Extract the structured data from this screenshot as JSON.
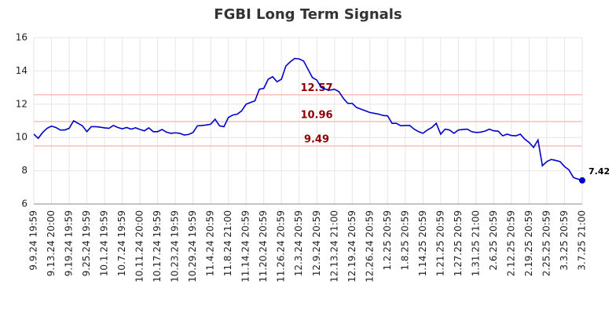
{
  "chart_data": {
    "type": "line",
    "title": "FGBI Long Term Signals",
    "categories": [
      "9.9.24 19:59",
      null,
      null,
      null,
      "9.13.24 20:00",
      null,
      null,
      null,
      "9.19.24 19:59",
      null,
      null,
      null,
      "9.25.24 19:59",
      null,
      null,
      null,
      "10.1.24 19:59",
      null,
      null,
      null,
      "10.7.24 19:59",
      null,
      null,
      null,
      "10.11.24 20:00",
      null,
      null,
      null,
      "10.17.24 19:59",
      null,
      null,
      null,
      "10.23.24 19:59",
      null,
      null,
      null,
      "10.29.24 19:59",
      null,
      null,
      null,
      "11.4.24 20:59",
      null,
      null,
      null,
      "11.8.24 21:00",
      null,
      null,
      null,
      "11.14.24 20:59",
      null,
      null,
      null,
      "11.20.24 20:59",
      null,
      null,
      null,
      "11.26.24 20:59",
      null,
      null,
      null,
      "12.3.24 20:59",
      null,
      null,
      null,
      "12.9.24 20:59",
      null,
      null,
      null,
      "12.13.24 21:00",
      null,
      null,
      null,
      "12.19.24 20:59",
      null,
      null,
      null,
      "12.26.24 20:59",
      null,
      null,
      null,
      "1.2.25 20:59",
      null,
      null,
      null,
      "1.8.25 20:59",
      null,
      null,
      null,
      "1.14.25 20:59",
      null,
      null,
      null,
      "1.21.25 20:59",
      null,
      null,
      null,
      "1.27.25 20:59",
      null,
      null,
      null,
      "1.31.25 21:00",
      null,
      null,
      null,
      "2.6.25 20:59",
      null,
      null,
      null,
      "2.12.25 20:59",
      null,
      null,
      null,
      "2.19.25 20:59",
      null,
      null,
      null,
      "2.25.25 20:59",
      null,
      null,
      null,
      "3.3.25 20:59",
      null,
      null,
      null,
      "3.7.25 21:00"
    ],
    "series": [
      {
        "color": "#0000cc",
        "values": [
          10.2,
          9.95,
          10.3,
          10.55,
          10.68,
          10.6,
          10.45,
          10.45,
          10.55,
          11.0,
          10.85,
          10.7,
          10.35,
          10.65,
          10.65,
          10.62,
          10.58,
          10.55,
          10.72,
          10.6,
          10.52,
          10.6,
          10.5,
          10.58,
          10.48,
          10.4,
          10.58,
          10.35,
          10.35,
          10.48,
          10.32,
          10.25,
          10.28,
          10.25,
          10.15,
          10.18,
          10.3,
          10.7,
          10.72,
          10.75,
          10.8,
          11.1,
          10.7,
          10.65,
          11.2,
          11.35,
          11.4,
          11.6,
          12.0,
          12.1,
          12.2,
          12.9,
          12.95,
          13.5,
          13.65,
          13.35,
          13.5,
          14.3,
          14.55,
          14.75,
          14.72,
          14.6,
          14.1,
          13.6,
          13.45,
          13.0,
          12.9,
          12.85,
          12.9,
          12.75,
          12.35,
          12.05,
          12.05,
          11.8,
          11.7,
          11.6,
          11.5,
          11.45,
          11.4,
          11.32,
          11.3,
          10.85,
          10.85,
          10.7,
          10.72,
          10.72,
          10.5,
          10.35,
          10.25,
          10.45,
          10.6,
          10.85,
          10.2,
          10.5,
          10.45,
          10.25,
          10.45,
          10.48,
          10.5,
          10.35,
          10.3,
          10.32,
          10.38,
          10.5,
          10.4,
          10.38,
          10.1,
          10.2,
          10.12,
          10.1,
          10.2,
          9.9,
          9.7,
          9.4,
          9.85,
          8.3,
          8.55,
          8.68,
          8.62,
          8.55,
          8.25,
          8.05,
          7.6,
          7.5,
          7.42
        ]
      }
    ],
    "levels": [
      12.57,
      10.96,
      9.49
    ],
    "ylim": [
      6,
      16
    ],
    "yticks": [
      6,
      8,
      10,
      12,
      14,
      16
    ],
    "grid": true
  }
}
